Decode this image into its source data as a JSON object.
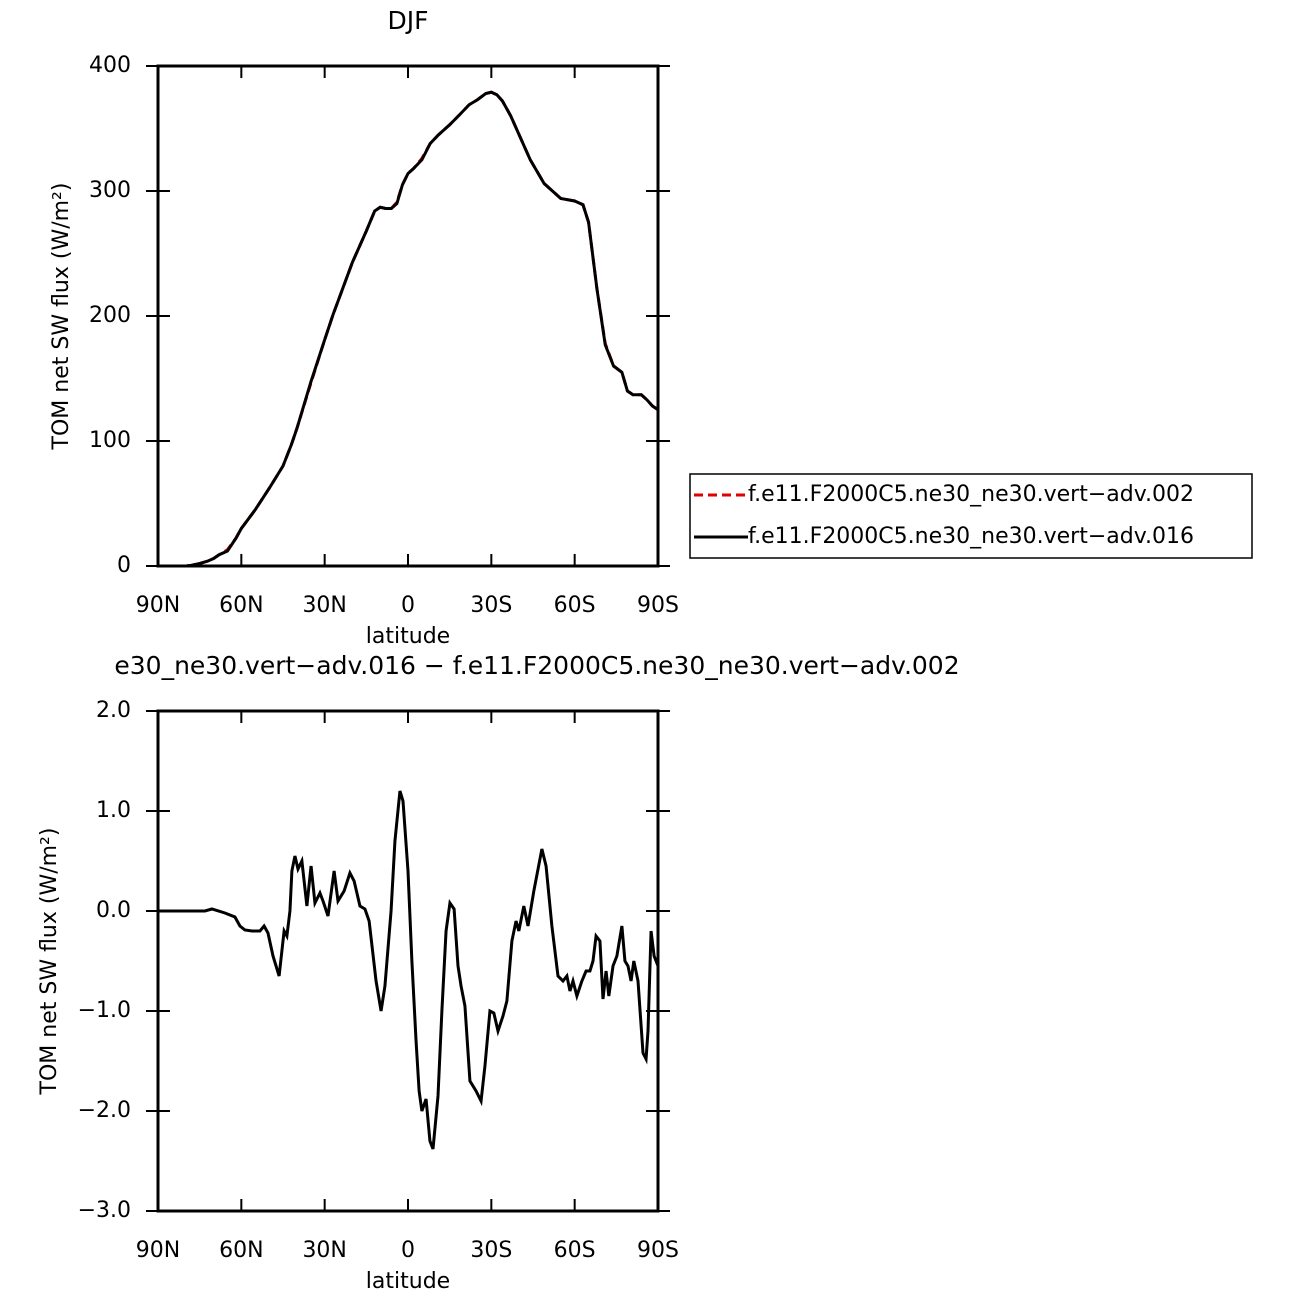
{
  "chart_data": [
    {
      "type": "line",
      "title": "DJF",
      "xlabel": "latitude",
      "ylabel": "TOM net SW flux (W/m²)",
      "x": [
        90,
        85,
        80,
        78,
        75,
        72,
        70,
        68,
        65,
        62,
        60,
        55,
        50,
        45,
        42,
        40,
        35,
        30,
        27,
        25,
        20,
        15,
        12,
        10,
        8,
        6,
        4,
        2,
        0,
        -2,
        -5,
        -8,
        -11,
        -15,
        -19,
        -22,
        -25,
        -28,
        -30,
        -32,
        -34,
        -37,
        -40,
        -44,
        -49,
        -55,
        -60,
        -63,
        -65,
        -68,
        -71,
        -74,
        -77,
        -79,
        -81,
        -84,
        -86,
        -88,
        -90
      ],
      "series": [
        {
          "name": "f.e11.F2000C5.ne30_ne30.vert−adv.002",
          "color": "#e00000",
          "line_style": "dashed",
          "values": [
            0,
            0,
            0,
            0.5,
            2,
            4,
            6,
            9,
            13,
            22,
            30,
            45,
            62,
            80,
            97,
            110,
            146,
            181,
            201,
            213,
            243,
            268,
            284,
            287,
            286,
            286,
            291,
            305,
            314,
            318,
            326,
            338,
            345,
            353,
            362,
            369,
            373,
            378,
            379,
            377,
            372,
            360,
            345,
            325,
            306,
            294,
            292,
            289,
            275,
            222,
            178,
            160,
            155,
            140,
            137,
            137,
            133,
            128,
            125
          ]
        },
        {
          "name": "f.e11.F2000C5.ne30_ne30.vert−adv.016",
          "color": "#000000",
          "line_style": "solid",
          "values": [
            0,
            0,
            0,
            0.5,
            2,
            4,
            6,
            9,
            12,
            22,
            30,
            45,
            62,
            80,
            97,
            110,
            147,
            181,
            201,
            213,
            243,
            268,
            284,
            287,
            286,
            286,
            290,
            305,
            314,
            318,
            325,
            338,
            345,
            353,
            362,
            369,
            373,
            378,
            379,
            377,
            372,
            360,
            345,
            325,
            306,
            294,
            292,
            289,
            275,
            222,
            177,
            160,
            155,
            140,
            137,
            137,
            133,
            128,
            125
          ]
        }
      ],
      "xlim": [
        90,
        -90
      ],
      "xticks": [
        {
          "value": 90,
          "label": "90N"
        },
        {
          "value": 60,
          "label": "60N"
        },
        {
          "value": 30,
          "label": "30N"
        },
        0,
        {
          "value": -30,
          "label": "30S"
        },
        {
          "value": -60,
          "label": "60S"
        },
        {
          "value": -90,
          "label": "90S"
        }
      ],
      "ylim": [
        0,
        400
      ],
      "yticks": [
        0,
        100,
        200,
        300,
        400
      ],
      "legend": "right"
    },
    {
      "type": "line",
      "title": "e30_ne30.vert−adv.016 − f.e11.F2000C5.ne30_ne30.vert−adv.002",
      "xlabel": "latitude",
      "ylabel": "TOM net SW flux (W/m²)",
      "x": [
        90,
        73.1,
        70.6,
        65.9,
        62.3,
        60.5,
        58.7,
        56.2,
        53.3,
        51.8,
        50.4,
        48.6,
        46.4,
        44.6,
        43.6,
        42.5,
        41.8,
        40.7,
        39.6,
        38.2,
        36.4,
        34.9,
        33.5,
        31.7,
        30.6,
        28.8,
        26.6,
        25.2,
        23.0,
        20.9,
        19.4,
        17.3,
        15.5,
        14.0,
        11.5,
        9.7,
        8.3,
        6.1,
        4.7,
        2.9,
        1.8,
        0,
        -1.4,
        -2.9,
        -4.0,
        -5.0,
        -6.5,
        -7.9,
        -9.0,
        -10.8,
        -12.2,
        -13.7,
        -15.1,
        -16.6,
        -18.0,
        -19.1,
        -20.5,
        -22.3,
        -24.5,
        -26.3,
        -27.7,
        -29.5,
        -30.9,
        -32.4,
        -34.2,
        -35.6,
        -37.4,
        -38.9,
        -39.9,
        -41.7,
        -43.2,
        -45.3,
        -48.2,
        -49.7,
        -51.8,
        -54.0,
        -55.8,
        -57.2,
        -58.3,
        -59.4,
        -60.8,
        -62.6,
        -64.1,
        -65.5,
        -66.6,
        -67.7,
        -69.1,
        -70.2,
        -71.3,
        -72.3,
        -73.8,
        -75.2,
        -77.0,
        -78.1,
        -79.2,
        -80.3,
        -81.3,
        -82.8,
        -84.6,
        -85.7,
        -86.4,
        -87.5,
        -88.6,
        -90
      ],
      "series": [
        {
          "color": "#000000",
          "line_style": "solid",
          "values": [
            0,
            0,
            0.02,
            -0.02,
            -0.06,
            -0.15,
            -0.19,
            -0.2,
            -0.2,
            -0.15,
            -0.22,
            -0.45,
            -0.65,
            -0.2,
            -0.25,
            0,
            0.4,
            0.55,
            0.42,
            0.5,
            0.05,
            0.45,
            0.08,
            0.18,
            0.1,
            -0.05,
            0.4,
            0.1,
            0.2,
            0.38,
            0.3,
            0.05,
            0.02,
            -0.1,
            -0.7,
            -1.0,
            -0.75,
            0,
            0.7,
            1.2,
            1.1,
            0.4,
            -0.5,
            -1.3,
            -1.8,
            -2.0,
            -1.88,
            -2.3,
            -2.38,
            -1.85,
            -1.0,
            -0.2,
            0.08,
            0.02,
            -0.55,
            -0.75,
            -0.95,
            -1.7,
            -1.8,
            -1.9,
            -1.55,
            -1.0,
            -1.02,
            -1.2,
            -1.05,
            -0.9,
            -0.3,
            -0.1,
            -0.2,
            0.05,
            -0.15,
            0.2,
            0.62,
            0.45,
            -0.15,
            -0.65,
            -0.7,
            -0.65,
            -0.8,
            -0.7,
            -0.85,
            -0.7,
            -0.6,
            -0.6,
            -0.5,
            -0.25,
            -0.3,
            -0.88,
            -0.6,
            -0.85,
            -0.55,
            -0.45,
            -0.15,
            -0.5,
            -0.55,
            -0.7,
            -0.5,
            -0.7,
            -1.42,
            -1.48,
            -1.2,
            -0.2,
            -0.45,
            -0.55
          ]
        }
      ],
      "xlim": [
        90,
        -90
      ],
      "xticks": [
        {
          "value": 90,
          "label": "90N"
        },
        {
          "value": 60,
          "label": "60N"
        },
        {
          "value": 30,
          "label": "30N"
        },
        0,
        {
          "value": -30,
          "label": "30S"
        },
        {
          "value": -60,
          "label": "60S"
        },
        {
          "value": -90,
          "label": "90S"
        }
      ],
      "ylim": [
        -3,
        2
      ],
      "yticks": [
        {
          "value": -3,
          "label": "−3.0"
        },
        {
          "value": -2,
          "label": "−2.0"
        },
        {
          "value": -1,
          "label": "−1.0"
        },
        {
          "value": 0,
          "label": "0.0"
        },
        {
          "value": 1,
          "label": "1.0"
        },
        {
          "value": 2,
          "label": "2.0"
        }
      ]
    }
  ]
}
